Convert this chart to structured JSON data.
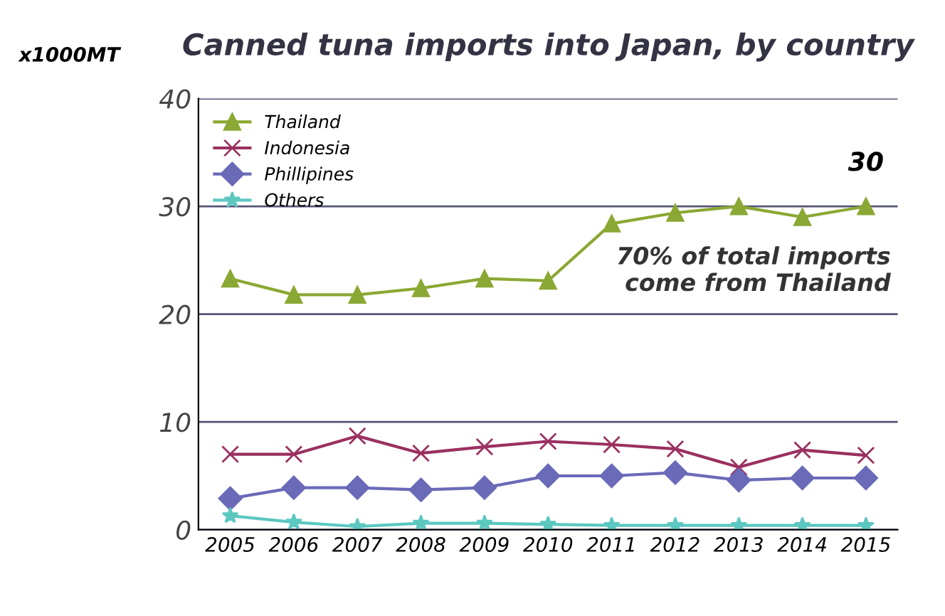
{
  "chart_data": {
    "type": "line",
    "title": "Canned tuna imports into Japan, by country",
    "ylabel": "x1000MT",
    "categories": [
      "2005",
      "2006",
      "2007",
      "2008",
      "2009",
      "2010",
      "2011",
      "2012",
      "2013",
      "2014",
      "2015"
    ],
    "series": [
      {
        "name": "Thailand",
        "color": "#8aa833",
        "marker": "triangle",
        "values": [
          23.3,
          21.8,
          21.8,
          22.4,
          23.3,
          23.1,
          28.4,
          29.4,
          30,
          29,
          30
        ]
      },
      {
        "name": "Indonesia",
        "color": "#9a3060",
        "marker": "cross",
        "values": [
          7,
          7,
          8.7,
          7.1,
          7.7,
          8.2,
          7.9,
          7.5,
          5.8,
          7.4,
          6.9
        ]
      },
      {
        "name": "Phillipines",
        "color": "#6a6ab8",
        "marker": "diamond",
        "values": [
          2.9,
          3.9,
          3.9,
          3.7,
          3.9,
          5.0,
          5.0,
          5.3,
          4.6,
          4.8,
          4.8
        ]
      },
      {
        "name": "Others",
        "color": "#5cc8c0",
        "marker": "star",
        "values": [
          1.3,
          0.7,
          0.3,
          0.6,
          0.6,
          0.5,
          0.4,
          0.4,
          0.4,
          0.4,
          0.4
        ]
      }
    ],
    "annotations": [
      {
        "text": "30",
        "x": "2015",
        "y": 30
      },
      "70% of total imports\ncome from Thailand"
    ],
    "ylim": [
      0,
      40
    ],
    "yticks": [
      0,
      10,
      20,
      30,
      40
    ],
    "grid": "y",
    "legend": "top left"
  }
}
